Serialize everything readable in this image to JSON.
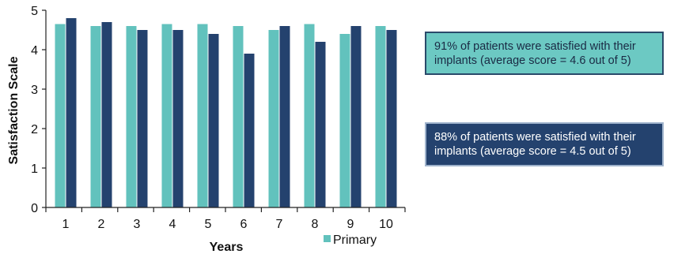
{
  "chart_data": {
    "type": "bar",
    "categories": [
      "1",
      "2",
      "3",
      "4",
      "5",
      "6",
      "7",
      "8",
      "9",
      "10"
    ],
    "series": [
      {
        "name": "Primary",
        "values": [
          4.65,
          4.6,
          4.6,
          4.65,
          4.65,
          4.6,
          4.5,
          4.65,
          4.4,
          4.6
        ],
        "color": "#62c2bd"
      },
      {
        "values": [
          4.8,
          4.7,
          4.5,
          4.5,
          4.4,
          3.9,
          4.6,
          4.2,
          4.6,
          4.5
        ],
        "color": "#24426e"
      }
    ],
    "xlabel": "Years",
    "ylabel": "Satisfaction Scale",
    "ylim": [
      0,
      5
    ],
    "yticks": [
      "0",
      "1",
      "2",
      "3",
      "4",
      "5"
    ],
    "grid": false,
    "legend": {
      "position": "bottom",
      "entries": [
        "Primary"
      ]
    }
  },
  "callouts": [
    {
      "text": "91% of patients were satisfied with their implants (average score = 4.6 out of 5)",
      "background": "#6cc9c3",
      "border": "#2a4a6a"
    },
    {
      "text": "88% of patients were satisfied with their implants (average score = 4.5 out of 5)",
      "background": "#24426e",
      "border": "#9fb3cc"
    }
  ]
}
